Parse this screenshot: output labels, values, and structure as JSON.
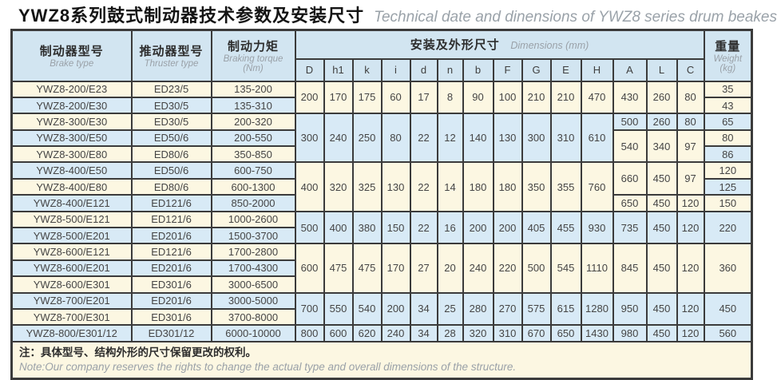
{
  "title": {
    "zh": "YWZ8系列鼓式制动器技术参数及安装尺寸",
    "en": "Technical date and dinensions of YWZ8 series drum beakes"
  },
  "header": {
    "brake": {
      "zh": "制动器型号",
      "en": "Brake type"
    },
    "thruster": {
      "zh": "推动器型号",
      "en": "Thruster type"
    },
    "torque": {
      "zh": "制动力矩",
      "en": "Braking torque",
      "unit": "(Nm)"
    },
    "dimensions": {
      "zh": "安装及外形尺寸",
      "en": "Dimensions (mm)"
    },
    "weight": {
      "zh": "重量",
      "en": "Weight",
      "unit": "(kg)"
    },
    "dim_columns": [
      "D",
      "h1",
      "k",
      "i",
      "d",
      "n",
      "b",
      "F",
      "G",
      "E",
      "H",
      "A",
      "L",
      "C"
    ]
  },
  "colors": {
    "cream": "#fcf7e2",
    "blue": "#d8eaf6",
    "header_blue": "#d2e5f1",
    "border": "#3b3b3b",
    "text": "#454545",
    "muted": "#9aa1a8"
  },
  "note": {
    "zh": "注：具体型号、结构外形的尺寸保留更改的权利。",
    "en": "Note:Our company reserves the rights to change the actual type and overall dimensions of the structure."
  },
  "table": {
    "rows": [
      [
        {
          "k": "brake",
          "t": "YWZ8-200/E23",
          "bg": "c"
        },
        {
          "k": "thruster",
          "t": "ED23/5",
          "bg": "c"
        },
        {
          "k": "torque",
          "t": "135-200",
          "bg": "c"
        },
        {
          "k": "D",
          "t": "200",
          "rs": 2,
          "bg": "c"
        },
        {
          "k": "h1",
          "t": "170",
          "rs": 2,
          "bg": "c"
        },
        {
          "k": "k",
          "t": "175",
          "rs": 2,
          "bg": "c"
        },
        {
          "k": "i",
          "t": "60",
          "rs": 2,
          "bg": "c"
        },
        {
          "k": "d",
          "t": "17",
          "rs": 2,
          "bg": "c"
        },
        {
          "k": "n",
          "t": "8",
          "rs": 2,
          "bg": "c"
        },
        {
          "k": "b",
          "t": "90",
          "rs": 2,
          "bg": "c"
        },
        {
          "k": "F",
          "t": "100",
          "rs": 2,
          "bg": "c"
        },
        {
          "k": "G",
          "t": "210",
          "rs": 2,
          "bg": "c"
        },
        {
          "k": "E",
          "t": "210",
          "rs": 2,
          "bg": "c"
        },
        {
          "k": "H",
          "t": "470",
          "rs": 2,
          "bg": "c"
        },
        {
          "k": "A",
          "t": "430",
          "rs": 2,
          "bg": "c"
        },
        {
          "k": "L",
          "t": "260",
          "rs": 2,
          "bg": "c"
        },
        {
          "k": "C",
          "t": "80",
          "rs": 2,
          "bg": "c"
        },
        {
          "k": "weight",
          "t": "35",
          "bg": "c"
        }
      ],
      [
        {
          "k": "brake",
          "t": "YWZ8-200/E30",
          "bg": "b"
        },
        {
          "k": "thruster",
          "t": "ED30/5",
          "bg": "b"
        },
        {
          "k": "torque",
          "t": "135-310",
          "bg": "b"
        },
        {
          "k": "weight",
          "t": "43",
          "bg": "c"
        }
      ],
      [
        {
          "k": "brake",
          "t": "YWZ8-300/E30",
          "bg": "c"
        },
        {
          "k": "thruster",
          "t": "ED30/5",
          "bg": "c"
        },
        {
          "k": "torque",
          "t": "200-320",
          "bg": "c"
        },
        {
          "k": "D",
          "t": "300",
          "rs": 3,
          "bg": "b"
        },
        {
          "k": "h1",
          "t": "240",
          "rs": 3,
          "bg": "b"
        },
        {
          "k": "k",
          "t": "250",
          "rs": 3,
          "bg": "b"
        },
        {
          "k": "i",
          "t": "80",
          "rs": 3,
          "bg": "b"
        },
        {
          "k": "d",
          "t": "22",
          "rs": 3,
          "bg": "b"
        },
        {
          "k": "n",
          "t": "12",
          "rs": 3,
          "bg": "b"
        },
        {
          "k": "b",
          "t": "140",
          "rs": 3,
          "bg": "b"
        },
        {
          "k": "F",
          "t": "130",
          "rs": 3,
          "bg": "b"
        },
        {
          "k": "G",
          "t": "300",
          "rs": 3,
          "bg": "b"
        },
        {
          "k": "E",
          "t": "310",
          "rs": 3,
          "bg": "b"
        },
        {
          "k": "H",
          "t": "610",
          "rs": 3,
          "bg": "b"
        },
        {
          "k": "A",
          "t": "500",
          "bg": "b"
        },
        {
          "k": "L",
          "t": "260",
          "bg": "b"
        },
        {
          "k": "C",
          "t": "80",
          "bg": "b"
        },
        {
          "k": "weight",
          "t": "65",
          "bg": "b"
        }
      ],
      [
        {
          "k": "brake",
          "t": "YWZ8-300/E50",
          "bg": "b"
        },
        {
          "k": "thruster",
          "t": "ED50/6",
          "bg": "b"
        },
        {
          "k": "torque",
          "t": "200-550",
          "bg": "b"
        },
        {
          "k": "A",
          "t": "540",
          "rs": 2,
          "bg": "c"
        },
        {
          "k": "L",
          "t": "340",
          "rs": 2,
          "bg": "c"
        },
        {
          "k": "C",
          "t": "97",
          "rs": 2,
          "bg": "c"
        },
        {
          "k": "weight",
          "t": "80",
          "bg": "c"
        }
      ],
      [
        {
          "k": "brake",
          "t": "YWZ8-300/E80",
          "bg": "c"
        },
        {
          "k": "thruster",
          "t": "ED80/6",
          "bg": "c"
        },
        {
          "k": "torque",
          "t": "350-850",
          "bg": "c"
        },
        {
          "k": "weight",
          "t": "86",
          "bg": "b"
        }
      ],
      [
        {
          "k": "brake",
          "t": "YWZ8-400/E50",
          "bg": "b"
        },
        {
          "k": "thruster",
          "t": "ED50/6",
          "bg": "b"
        },
        {
          "k": "torque",
          "t": "600-750",
          "bg": "b"
        },
        {
          "k": "D",
          "t": "400",
          "rs": 3,
          "bg": "c"
        },
        {
          "k": "h1",
          "t": "320",
          "rs": 3,
          "bg": "c"
        },
        {
          "k": "k",
          "t": "325",
          "rs": 3,
          "bg": "c"
        },
        {
          "k": "i",
          "t": "130",
          "rs": 3,
          "bg": "c"
        },
        {
          "k": "d",
          "t": "22",
          "rs": 3,
          "bg": "c"
        },
        {
          "k": "n",
          "t": "14",
          "rs": 3,
          "bg": "c"
        },
        {
          "k": "b",
          "t": "180",
          "rs": 3,
          "bg": "c"
        },
        {
          "k": "F",
          "t": "180",
          "rs": 3,
          "bg": "c"
        },
        {
          "k": "G",
          "t": "350",
          "rs": 3,
          "bg": "c"
        },
        {
          "k": "E",
          "t": "355",
          "rs": 3,
          "bg": "c"
        },
        {
          "k": "H",
          "t": "760",
          "rs": 3,
          "bg": "c"
        },
        {
          "k": "A",
          "t": "660",
          "rs": 2,
          "bg": "c"
        },
        {
          "k": "L",
          "t": "450",
          "rs": 2,
          "bg": "c"
        },
        {
          "k": "C",
          "t": "97",
          "rs": 2,
          "bg": "c"
        },
        {
          "k": "weight",
          "t": "120",
          "bg": "c"
        }
      ],
      [
        {
          "k": "brake",
          "t": "YWZ8-400/E80",
          "bg": "c"
        },
        {
          "k": "thruster",
          "t": "ED80/6",
          "bg": "c"
        },
        {
          "k": "torque",
          "t": "600-1300",
          "bg": "c"
        },
        {
          "k": "weight",
          "t": "125",
          "bg": "b"
        }
      ],
      [
        {
          "k": "brake",
          "t": "YWZ8-400/E121",
          "bg": "b"
        },
        {
          "k": "thruster",
          "t": "ED121/6",
          "bg": "b"
        },
        {
          "k": "torque",
          "t": "850-2000",
          "bg": "b"
        },
        {
          "k": "A",
          "t": "650",
          "bg": "c"
        },
        {
          "k": "L",
          "t": "450",
          "bg": "c"
        },
        {
          "k": "C",
          "t": "120",
          "bg": "c"
        },
        {
          "k": "weight",
          "t": "150",
          "bg": "c"
        }
      ],
      [
        {
          "k": "brake",
          "t": "YWZ8-500/E121",
          "bg": "c"
        },
        {
          "k": "thruster",
          "t": "ED121/6",
          "bg": "c"
        },
        {
          "k": "torque",
          "t": "1000-2600",
          "bg": "c"
        },
        {
          "k": "D",
          "t": "500",
          "rs": 2,
          "bg": "b"
        },
        {
          "k": "h1",
          "t": "400",
          "rs": 2,
          "bg": "b"
        },
        {
          "k": "k",
          "t": "380",
          "rs": 2,
          "bg": "b"
        },
        {
          "k": "i",
          "t": "150",
          "rs": 2,
          "bg": "b"
        },
        {
          "k": "d",
          "t": "22",
          "rs": 2,
          "bg": "b"
        },
        {
          "k": "n",
          "t": "16",
          "rs": 2,
          "bg": "b"
        },
        {
          "k": "b",
          "t": "200",
          "rs": 2,
          "bg": "b"
        },
        {
          "k": "F",
          "t": "200",
          "rs": 2,
          "bg": "b"
        },
        {
          "k": "G",
          "t": "405",
          "rs": 2,
          "bg": "b"
        },
        {
          "k": "E",
          "t": "455",
          "rs": 2,
          "bg": "b"
        },
        {
          "k": "H",
          "t": "930",
          "rs": 2,
          "bg": "b"
        },
        {
          "k": "A",
          "t": "735",
          "rs": 2,
          "bg": "b"
        },
        {
          "k": "L",
          "t": "450",
          "rs": 2,
          "bg": "b"
        },
        {
          "k": "C",
          "t": "120",
          "rs": 2,
          "bg": "b"
        },
        {
          "k": "weight",
          "t": "220",
          "rs": 2,
          "bg": "b"
        }
      ],
      [
        {
          "k": "brake",
          "t": "YWZ8-500/E201",
          "bg": "b"
        },
        {
          "k": "thruster",
          "t": "ED201/6",
          "bg": "b"
        },
        {
          "k": "torque",
          "t": "1500-3700",
          "bg": "b"
        }
      ],
      [
        {
          "k": "brake",
          "t": "YWZ8-600/E121",
          "bg": "c"
        },
        {
          "k": "thruster",
          "t": "ED121/6",
          "bg": "c"
        },
        {
          "k": "torque",
          "t": "1700-2800",
          "bg": "c"
        },
        {
          "k": "D",
          "t": "600",
          "rs": 3,
          "bg": "c"
        },
        {
          "k": "h1",
          "t": "475",
          "rs": 3,
          "bg": "c"
        },
        {
          "k": "k",
          "t": "475",
          "rs": 3,
          "bg": "c"
        },
        {
          "k": "i",
          "t": "170",
          "rs": 3,
          "bg": "c"
        },
        {
          "k": "d",
          "t": "27",
          "rs": 3,
          "bg": "c"
        },
        {
          "k": "n",
          "t": "20",
          "rs": 3,
          "bg": "c"
        },
        {
          "k": "b",
          "t": "240",
          "rs": 3,
          "bg": "c"
        },
        {
          "k": "F",
          "t": "220",
          "rs": 3,
          "bg": "c"
        },
        {
          "k": "G",
          "t": "500",
          "rs": 3,
          "bg": "c"
        },
        {
          "k": "E",
          "t": "545",
          "rs": 3,
          "bg": "c"
        },
        {
          "k": "H",
          "t": "1110",
          "rs": 3,
          "bg": "c"
        },
        {
          "k": "A",
          "t": "845",
          "rs": 3,
          "bg": "c"
        },
        {
          "k": "L",
          "t": "450",
          "rs": 3,
          "bg": "c"
        },
        {
          "k": "C",
          "t": "120",
          "rs": 3,
          "bg": "c"
        },
        {
          "k": "weight",
          "t": "360",
          "rs": 3,
          "bg": "c"
        }
      ],
      [
        {
          "k": "brake",
          "t": "YWZ8-600/E201",
          "bg": "b"
        },
        {
          "k": "thruster",
          "t": "ED201/6",
          "bg": "b"
        },
        {
          "k": "torque",
          "t": "1700-4300",
          "bg": "b"
        }
      ],
      [
        {
          "k": "brake",
          "t": "YWZ8-600/E301",
          "bg": "c"
        },
        {
          "k": "thruster",
          "t": "ED301/6",
          "bg": "c"
        },
        {
          "k": "torque",
          "t": "3000-6500",
          "bg": "c"
        }
      ],
      [
        {
          "k": "brake",
          "t": "YWZ8-700/E201",
          "bg": "b"
        },
        {
          "k": "thruster",
          "t": "ED201/6",
          "bg": "b"
        },
        {
          "k": "torque",
          "t": "3000-5000",
          "bg": "b"
        },
        {
          "k": "D",
          "t": "700",
          "rs": 2,
          "bg": "b"
        },
        {
          "k": "h1",
          "t": "550",
          "rs": 2,
          "bg": "b"
        },
        {
          "k": "k",
          "t": "540",
          "rs": 2,
          "bg": "b"
        },
        {
          "k": "i",
          "t": "200",
          "rs": 2,
          "bg": "b"
        },
        {
          "k": "d",
          "t": "34",
          "rs": 2,
          "bg": "b"
        },
        {
          "k": "n",
          "t": "25",
          "rs": 2,
          "bg": "b"
        },
        {
          "k": "b",
          "t": "280",
          "rs": 2,
          "bg": "b"
        },
        {
          "k": "F",
          "t": "270",
          "rs": 2,
          "bg": "b"
        },
        {
          "k": "G",
          "t": "575",
          "rs": 2,
          "bg": "b"
        },
        {
          "k": "E",
          "t": "615",
          "rs": 2,
          "bg": "b"
        },
        {
          "k": "H",
          "t": "1280",
          "rs": 2,
          "bg": "b"
        },
        {
          "k": "A",
          "t": "950",
          "rs": 2,
          "bg": "b"
        },
        {
          "k": "L",
          "t": "450",
          "rs": 2,
          "bg": "b"
        },
        {
          "k": "C",
          "t": "120",
          "rs": 2,
          "bg": "b"
        },
        {
          "k": "weight",
          "t": "450",
          "rs": 2,
          "bg": "b"
        }
      ],
      [
        {
          "k": "brake",
          "t": "YWZ8-700/E301",
          "bg": "c"
        },
        {
          "k": "thruster",
          "t": "ED301/6",
          "bg": "c"
        },
        {
          "k": "torque",
          "t": "3700-8000",
          "bg": "c"
        }
      ],
      [
        {
          "k": "brake",
          "t": "YWZ8-800/E301/12",
          "bg": "b"
        },
        {
          "k": "thruster",
          "t": "ED301/12",
          "bg": "b"
        },
        {
          "k": "torque",
          "t": "6000-10000",
          "bg": "b"
        },
        {
          "k": "D",
          "t": "800",
          "bg": "b"
        },
        {
          "k": "h1",
          "t": "600",
          "bg": "b"
        },
        {
          "k": "k",
          "t": "620",
          "bg": "b"
        },
        {
          "k": "i",
          "t": "240",
          "bg": "b"
        },
        {
          "k": "d",
          "t": "34",
          "bg": "b"
        },
        {
          "k": "n",
          "t": "28",
          "bg": "b"
        },
        {
          "k": "b",
          "t": "320",
          "bg": "b"
        },
        {
          "k": "F",
          "t": "310",
          "bg": "b"
        },
        {
          "k": "G",
          "t": "670",
          "bg": "b"
        },
        {
          "k": "E",
          "t": "650",
          "bg": "b"
        },
        {
          "k": "H",
          "t": "1430",
          "bg": "b"
        },
        {
          "k": "A",
          "t": "980",
          "bg": "b"
        },
        {
          "k": "L",
          "t": "450",
          "bg": "b"
        },
        {
          "k": "C",
          "t": "120",
          "bg": "b"
        },
        {
          "k": "weight",
          "t": "560",
          "bg": "b"
        }
      ]
    ]
  }
}
